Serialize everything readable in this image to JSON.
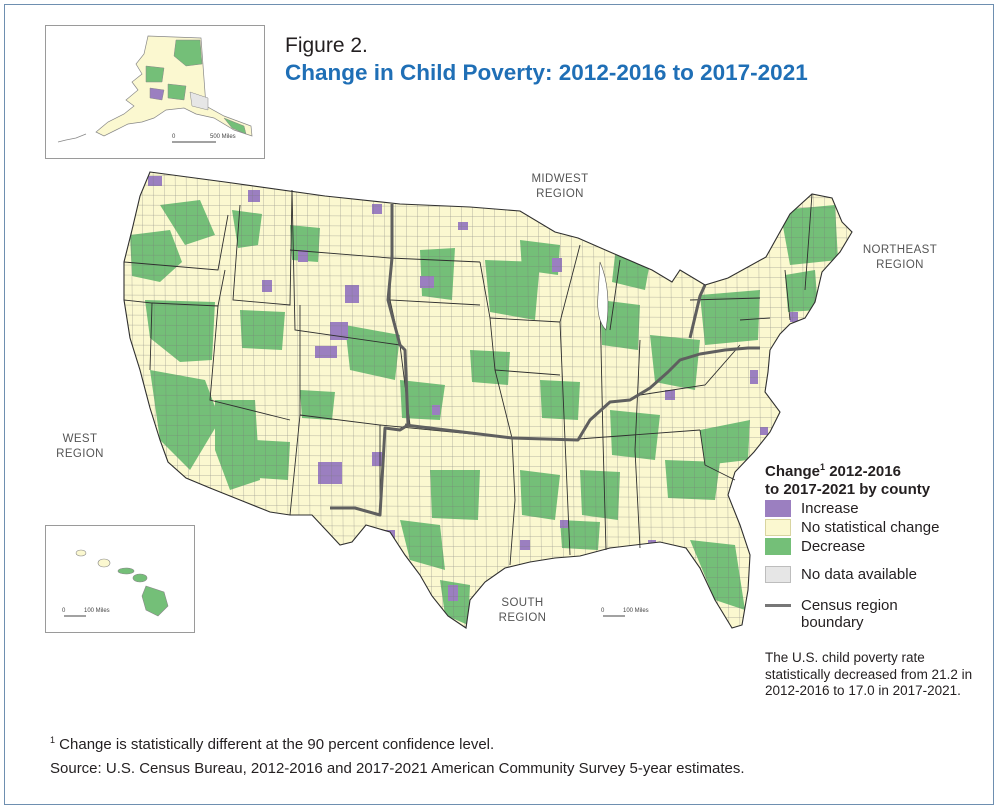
{
  "figure": {
    "label": "Figure 2.",
    "title": "Change in Child Poverty: 2012-2016 to 2017-2021"
  },
  "regions": {
    "midwest": [
      "MIDWEST",
      "REGION"
    ],
    "northeast": [
      "NORTHEAST",
      "REGION"
    ],
    "west": [
      "WEST",
      "REGION"
    ],
    "south": [
      "SOUTH",
      "REGION"
    ]
  },
  "scales": {
    "alaska": {
      "zero": "0",
      "label": "500 Miles"
    },
    "hawaii": {
      "zero": "0",
      "label": "100 Miles"
    },
    "mainland": {
      "zero": "0",
      "label": "100 Miles"
    }
  },
  "legend": {
    "title_prefix": "Change",
    "title_sup": "1",
    "title_rest": " 2012-2016",
    "title_line2": "to 2017-2021 by county",
    "items": [
      {
        "label": "Increase",
        "color": "#9b7fc0"
      },
      {
        "label": "No statistical change",
        "color": "#fbf8d0"
      },
      {
        "label": "Decrease",
        "color": "#74bf78"
      },
      {
        "label": "No data available",
        "color": "#e6e6e6"
      }
    ],
    "boundary": {
      "line1": "Census region",
      "line2": "boundary",
      "color": "#777777"
    }
  },
  "note": "The U.S. child poverty rate statistically decreased from 21.2 in 2012-2016 to 17.0 in 2017-2021.",
  "footnote": {
    "sup": "1",
    "text": " Change is statistically different at the 90 percent confidence level."
  },
  "source": "Source: U.S. Census Bureau, 2012-2016 and 2017-2021 American Community Survey 5-year estimates."
}
